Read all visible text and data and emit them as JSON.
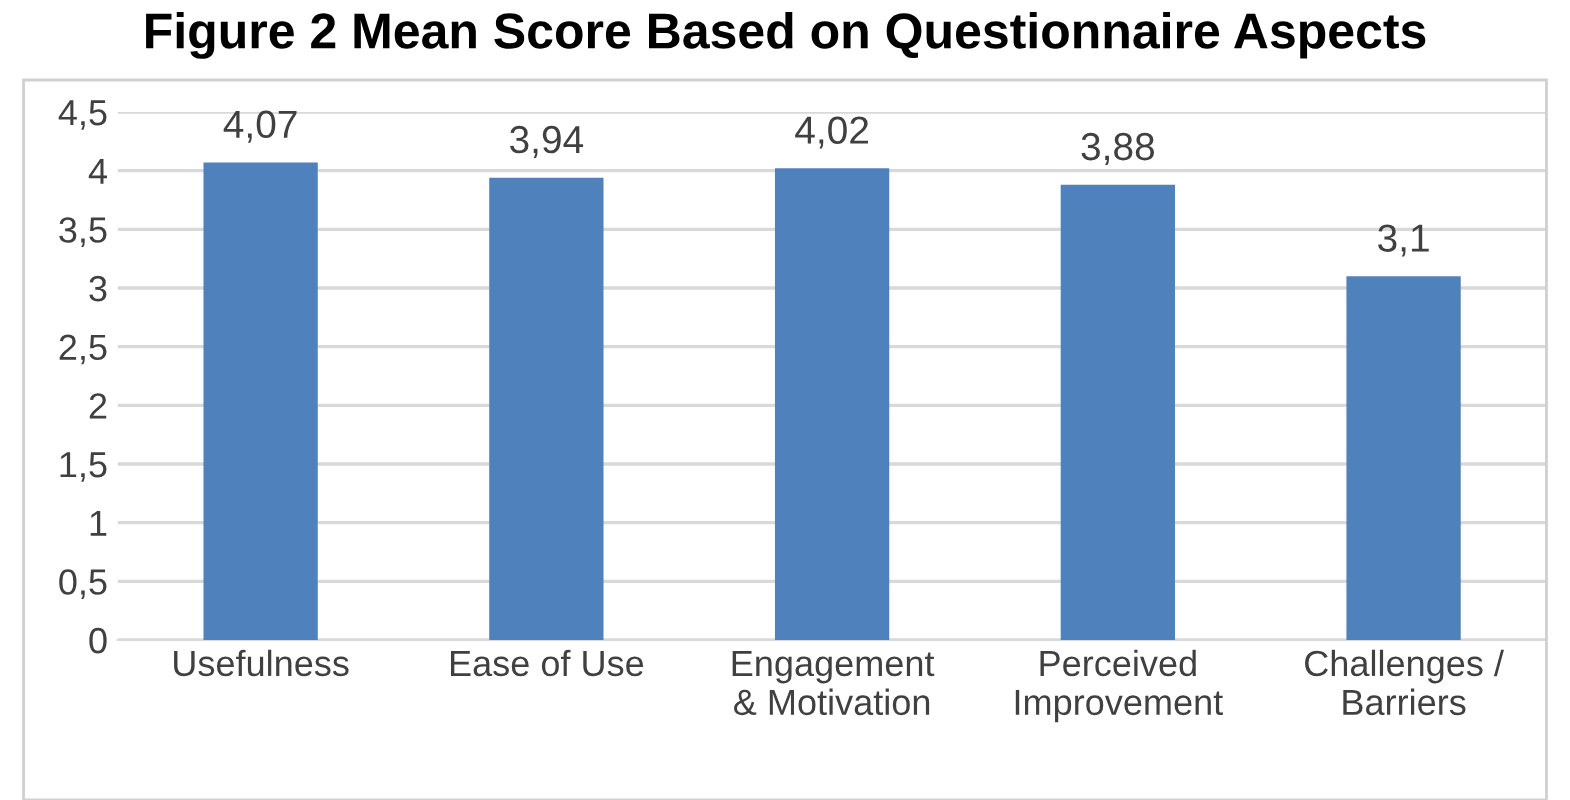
{
  "chart_data": {
    "type": "bar",
    "title": "Figure 2 Mean Score Based on Questionnaire Aspects",
    "categories": [
      "Usefulness",
      "Ease of Use",
      "Engagement\n& Motivation",
      "Perceived\nImprovement",
      "Challenges /\nBarriers"
    ],
    "values": [
      4.07,
      3.94,
      4.02,
      3.88,
      3.1
    ],
    "value_labels": [
      "4,07",
      "3,94",
      "4,02",
      "3,88",
      "3,1"
    ],
    "color": "#4f81bd",
    "ylim": [
      0,
      4.5
    ],
    "yticks": [
      0,
      {
        "value": 0.5,
        "label": "0,5"
      },
      1,
      {
        "value": 1.5,
        "label": "1,5"
      },
      2,
      {
        "value": 2.5,
        "label": "2,5"
      },
      3,
      {
        "value": 3.5,
        "label": "3,5"
      },
      4,
      {
        "value": 4.5,
        "label": "4,5"
      }
    ],
    "grid": "y"
  }
}
